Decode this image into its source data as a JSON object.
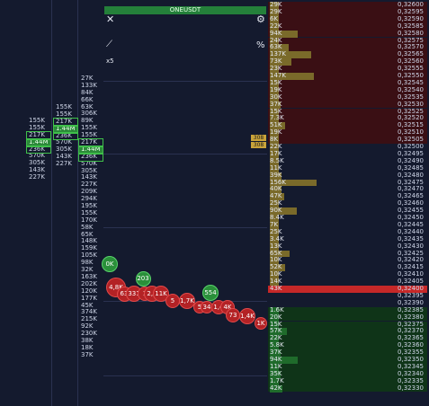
{
  "symbol": "ONEUSDT",
  "multiplier": "x5",
  "icons": {
    "close": "close-icon",
    "gear": "gear-icon",
    "chart": "chart-icon",
    "percent": "percent-icon"
  },
  "col1": [
    "155K",
    "155K",
    "217K",
    "1.44M",
    "236K",
    "570K",
    "305K",
    "143K",
    "227K"
  ],
  "col2": [
    "155K",
    "155K",
    "217K",
    "1.44M",
    "236K",
    "570K",
    "305K",
    "143K",
    "227K"
  ],
  "col3": [
    "27K",
    "133K",
    "84K",
    "66K",
    "63K",
    "306K",
    "89K",
    "155K",
    "155K",
    "217K",
    "1.44M",
    "236K",
    "570K",
    "305K",
    "143K",
    "227K",
    "209K",
    "294K",
    "195K",
    "155K",
    "170K",
    "58K",
    "65K",
    "148K",
    "159K",
    "105K",
    "98K",
    "32K",
    "163K",
    "202K",
    "120K",
    "177K",
    "45K",
    "374K",
    "215K",
    "92K",
    "230K",
    "38K",
    "18K",
    "37K"
  ],
  "markers": {
    "a": "308",
    "b": "308"
  },
  "rows": [
    {
      "v": "29K",
      "p": "0,32600",
      "s": "ask"
    },
    {
      "v": "29K",
      "p": "0,32595",
      "s": "ask"
    },
    {
      "v": "6K",
      "p": "0,32590",
      "s": "ask"
    },
    {
      "v": "22K",
      "p": "0,32585",
      "s": "ask"
    },
    {
      "v": "94K",
      "p": "0,32580",
      "s": "ask"
    },
    {
      "v": "24K",
      "p": "0,32575",
      "s": "ask"
    },
    {
      "v": "63K",
      "p": "0,32570",
      "s": "ask"
    },
    {
      "v": "137K",
      "p": "0,32565",
      "s": "ask"
    },
    {
      "v": "73K",
      "p": "0,32560",
      "s": "ask"
    },
    {
      "v": "23K",
      "p": "0,32555",
      "s": "ask"
    },
    {
      "v": "147K",
      "p": "0,32550",
      "s": "ask"
    },
    {
      "v": "15K",
      "p": "0,32545",
      "s": "ask"
    },
    {
      "v": "19K",
      "p": "0,32540",
      "s": "ask"
    },
    {
      "v": "30K",
      "p": "0,32535",
      "s": "ask"
    },
    {
      "v": "37K",
      "p": "0,32530",
      "s": "ask"
    },
    {
      "v": "15K",
      "p": "0,32525",
      "s": "ask"
    },
    {
      "v": "7.3K",
      "p": "0,32520",
      "s": "ask"
    },
    {
      "v": "51K",
      "p": "0,32515",
      "s": "ask"
    },
    {
      "v": "19K",
      "p": "0,32510",
      "s": "ask"
    },
    {
      "v": "8K",
      "p": "0,32505",
      "s": "ask"
    },
    {
      "v": "22K",
      "p": "0,32500",
      "s": "mid"
    },
    {
      "v": "17K",
      "p": "0,32495",
      "s": "mid"
    },
    {
      "v": "8.5K",
      "p": "0,32490",
      "s": "mid"
    },
    {
      "v": "11K",
      "p": "0,32485",
      "s": "mid"
    },
    {
      "v": "39K",
      "p": "0,32480",
      "s": "mid"
    },
    {
      "v": "156K",
      "p": "0,32475",
      "s": "mid"
    },
    {
      "v": "40K",
      "p": "0,32470",
      "s": "mid"
    },
    {
      "v": "47K",
      "p": "0,32465",
      "s": "mid"
    },
    {
      "v": "25K",
      "p": "0,32460",
      "s": "mid"
    },
    {
      "v": "90K",
      "p": "0,32455",
      "s": "mid"
    },
    {
      "v": "8.4K",
      "p": "0,32450",
      "s": "mid"
    },
    {
      "v": "7K",
      "p": "0,32445",
      "s": "mid"
    },
    {
      "v": "25K",
      "p": "0,32440",
      "s": "mid"
    },
    {
      "v": "3.4K",
      "p": "0,32435",
      "s": "mid"
    },
    {
      "v": "13K",
      "p": "0,32430",
      "s": "mid"
    },
    {
      "v": "65K",
      "p": "0,32425",
      "s": "mid"
    },
    {
      "v": "10K",
      "p": "0,32420",
      "s": "mid"
    },
    {
      "v": "52K",
      "p": "0,32415",
      "s": "mid"
    },
    {
      "v": "10K",
      "p": "0,32410",
      "s": "mid"
    },
    {
      "v": "14K",
      "p": "0,32405",
      "s": "mid"
    },
    {
      "v": "43K",
      "p": "0,32400",
      "s": "hl"
    },
    {
      "v": "",
      "p": "0,32395",
      "s": "mid"
    },
    {
      "v": "",
      "p": "0,32390",
      "s": "mid"
    },
    {
      "v": "1.6K",
      "p": "0,32385",
      "s": "bid"
    },
    {
      "v": "20K",
      "p": "0,32380",
      "s": "bid"
    },
    {
      "v": "15K",
      "p": "0,32375",
      "s": "bid"
    },
    {
      "v": "57K",
      "p": "0,32370",
      "s": "bid"
    },
    {
      "v": "22K",
      "p": "0,32365",
      "s": "bid"
    },
    {
      "v": "5.8K",
      "p": "0,32360",
      "s": "bid"
    },
    {
      "v": "37K",
      "p": "0,32355",
      "s": "bid"
    },
    {
      "v": "94K",
      "p": "0,32350",
      "s": "bid"
    },
    {
      "v": "11K",
      "p": "0,32345",
      "s": "bid"
    },
    {
      "v": "35K",
      "p": "0,32340",
      "s": "bid"
    },
    {
      "v": "1.7K",
      "p": "0,32335",
      "s": "bid"
    },
    {
      "v": "42K",
      "p": "0,32330",
      "s": "bid"
    }
  ],
  "bubbles": [
    "0K",
    "4,8K",
    "63",
    "331",
    "1",
    "2,1",
    "11K",
    "203",
    "5",
    "1,7K",
    "554",
    "5",
    "34",
    "1,4",
    "4K",
    "73",
    "1,4K",
    "1K"
  ]
}
